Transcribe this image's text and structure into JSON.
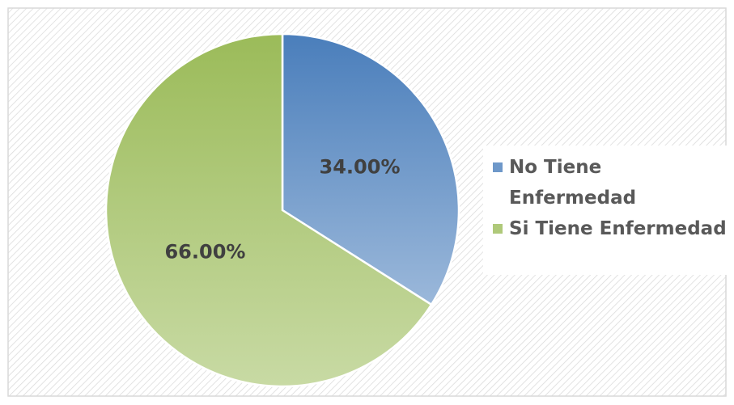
{
  "chart_data": {
    "type": "pie",
    "categories": [
      "No Tiene Enfermedad",
      "Si Tiene Enfermedad"
    ],
    "values": [
      34,
      66
    ],
    "value_labels": [
      "34.00%",
      "66.00%"
    ],
    "colors": [
      "#4a7ebb",
      "#9bbb59"
    ],
    "legend": "right"
  }
}
